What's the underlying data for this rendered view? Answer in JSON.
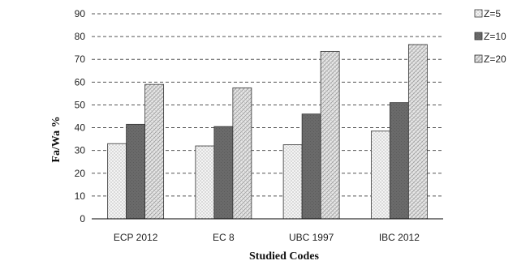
{
  "chart_data": {
    "type": "bar",
    "categories": [
      "ECP 2012",
      "EC 8",
      "UBC 1997",
      "IBC  2012"
    ],
    "series": [
      {
        "name": "Z=5",
        "values": [
          33,
          32,
          32.5,
          38.5
        ],
        "pattern": "dots"
      },
      {
        "name": "Z=10",
        "values": [
          41.5,
          40.5,
          46,
          51
        ],
        "pattern": "solid-dark"
      },
      {
        "name": "Z=20",
        "values": [
          59,
          57.5,
          73.5,
          76.5
        ],
        "pattern": "hatch"
      }
    ],
    "xlabel": "Studied Codes",
    "ylabel": "Fa/Wa %",
    "ylim": [
      0,
      90
    ],
    "yticks": [
      0,
      10,
      20,
      30,
      40,
      50,
      60,
      70,
      80,
      90
    ],
    "grid": true,
    "legend": "top-right"
  }
}
